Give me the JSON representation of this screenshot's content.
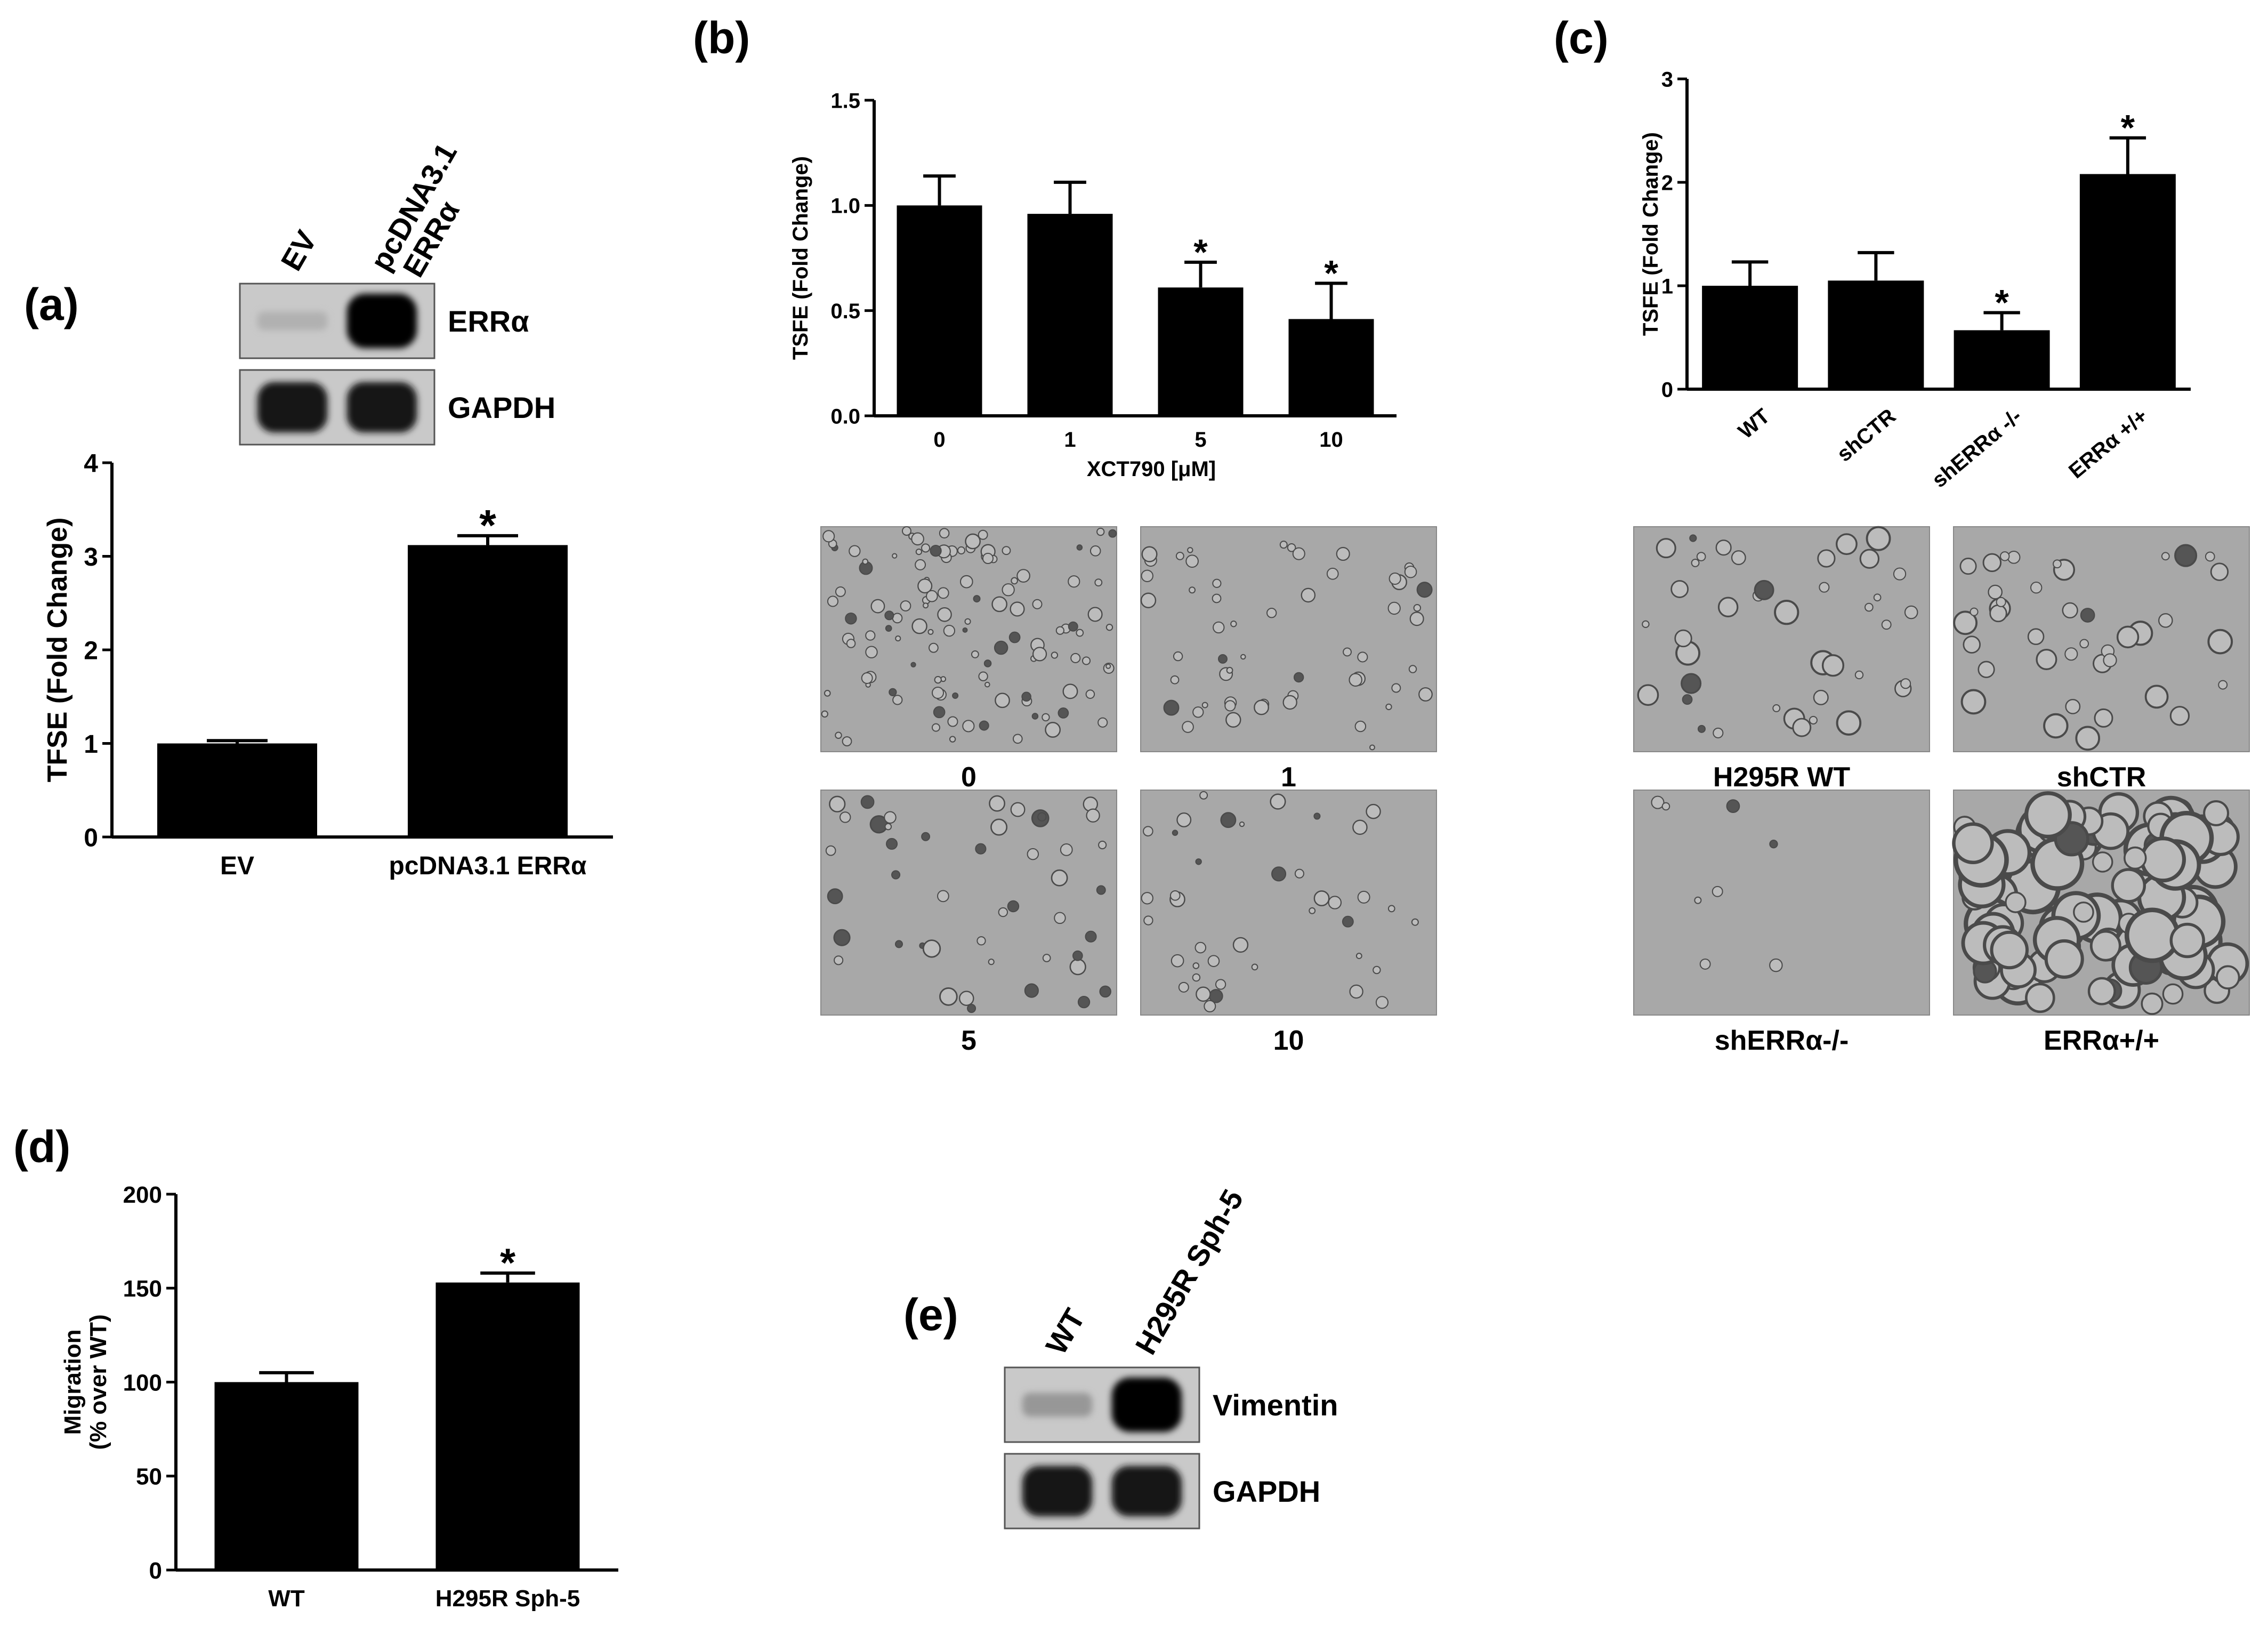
{
  "panels": {
    "a": {
      "letter": "(a)",
      "blot": {
        "lanes": [
          "EV",
          "pcDNA3.1\nERRα"
        ],
        "rows": [
          {
            "label": "ERRα",
            "intensities": [
              0.12,
              1.0
            ]
          },
          {
            "label": "GAPDH",
            "intensities": [
              0.9,
              0.9
            ]
          }
        ]
      }
    },
    "b": {
      "letter": "(b)",
      "micrographs": [
        {
          "label": "0",
          "density": "many-small"
        },
        {
          "label": "1",
          "density": "few-small"
        },
        {
          "label": "5",
          "density": "few-dark"
        },
        {
          "label": "10",
          "density": "sparse"
        }
      ]
    },
    "c": {
      "letter": "(c)",
      "micrographs": [
        {
          "label": "H295R WT",
          "density": "medium"
        },
        {
          "label": "shCTR",
          "density": "medium"
        },
        {
          "label": "shERRα-/-",
          "density": "very-sparse"
        },
        {
          "label": "ERRα+/+",
          "density": "dense-large"
        }
      ]
    },
    "d": {
      "letter": "(d)"
    },
    "e": {
      "letter": "(e)",
      "blot": {
        "lanes": [
          "WT",
          "H295R Sph-5"
        ],
        "rows": [
          {
            "label": "Vimentin",
            "intensities": [
              0.25,
              1.0
            ]
          },
          {
            "label": "GAPDH",
            "intensities": [
              0.9,
              0.9
            ]
          }
        ]
      }
    }
  },
  "chart_data": [
    {
      "id": "a",
      "type": "bar",
      "categories": [
        "EV",
        "pcDNA3.1 ERRα"
      ],
      "values": [
        1.0,
        3.12
      ],
      "errors": [
        0.03,
        0.1
      ],
      "significant": [
        false,
        true
      ],
      "significance_marker": "*",
      "ylabel": "TFSE (Fold Change)",
      "ylim": [
        0,
        4
      ],
      "yticks": [
        "0",
        "1",
        "2",
        "3",
        "4"
      ]
    },
    {
      "id": "b",
      "type": "bar",
      "categories": [
        "0",
        "1",
        "5",
        "10"
      ],
      "values": [
        1.0,
        0.96,
        0.61,
        0.46
      ],
      "errors": [
        0.14,
        0.15,
        0.12,
        0.17
      ],
      "significant": [
        false,
        false,
        true,
        true
      ],
      "significance_marker": "*",
      "xlabel": "XCT790 [μM]",
      "ylabel": "TSFE (Fold Change)",
      "ylim": [
        0,
        1.5
      ],
      "yticks": [
        "0.0",
        "0.5",
        "1.0",
        "1.5"
      ]
    },
    {
      "id": "c",
      "type": "bar",
      "categories": [
        "WT",
        "shCTR",
        "shERRα -/-",
        "ERRα +/+"
      ],
      "values": [
        1.0,
        1.05,
        0.57,
        2.08
      ],
      "errors": [
        0.23,
        0.27,
        0.17,
        0.35
      ],
      "significant": [
        false,
        false,
        true,
        true
      ],
      "significance_marker": "*",
      "ylabel": "TSFE (Fold Change)",
      "ylim": [
        0,
        3
      ],
      "yticks": [
        "0",
        "1",
        "2",
        "3"
      ]
    },
    {
      "id": "d",
      "type": "bar",
      "categories": [
        "WT",
        "H295R Sph-5"
      ],
      "values": [
        100,
        153
      ],
      "errors": [
        5,
        5
      ],
      "significant": [
        false,
        true
      ],
      "significance_marker": "*",
      "ylabel": "Migration\n(% over WT)",
      "ylim": [
        0,
        200
      ],
      "yticks": [
        "0",
        "50",
        "100",
        "150",
        "200"
      ]
    }
  ]
}
